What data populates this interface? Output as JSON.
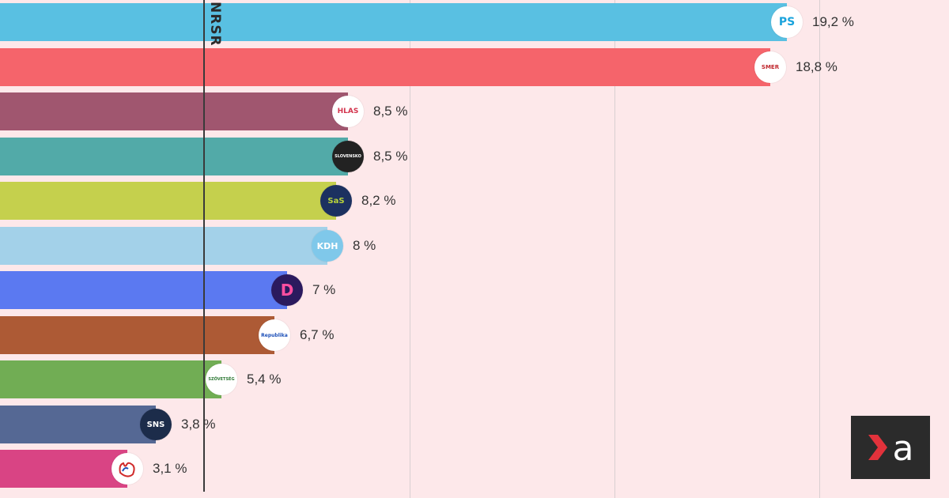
{
  "chart_data": {
    "type": "bar",
    "orientation": "horizontal",
    "threshold_label": "NRSR",
    "threshold_value": 5,
    "xlim": [
      0,
      23
    ],
    "gridlines": [
      10,
      15,
      20
    ],
    "categories": [
      "PS",
      "SMER",
      "HLAS",
      "Hnutie Slovensko",
      "SaS",
      "KDH",
      "Demokrati",
      "Republika",
      "Szövetség",
      "SNS",
      "Maďarská"
    ],
    "values": [
      19.2,
      18.8,
      8.5,
      8.5,
      8.2,
      8,
      7,
      6.7,
      5.4,
      3.8,
      3.1
    ],
    "value_labels": [
      "19,2 %",
      "18,8 %",
      "8,5 %",
      "8,5 %",
      "8,2 %",
      "8 %",
      "7 %",
      "6,7 %",
      "5,4 %",
      "3,8 %",
      "3,1 %"
    ],
    "colors": [
      "#59c0e2",
      "#f5646b",
      "#a0566f",
      "#52aaa8",
      "#c5d04d",
      "#a3d1e9",
      "#5b79f1",
      "#ad5a35",
      "#71ad54",
      "#556894",
      "#d94484"
    ],
    "badge_texts": [
      "PS",
      "SMER",
      "HLAS",
      "SLOVENSKO",
      "SaS",
      "KDH",
      "D",
      "Republika",
      "SZÖVETSÉG",
      "SNS",
      ""
    ]
  },
  "brand": {
    "logo_letter": "a"
  }
}
